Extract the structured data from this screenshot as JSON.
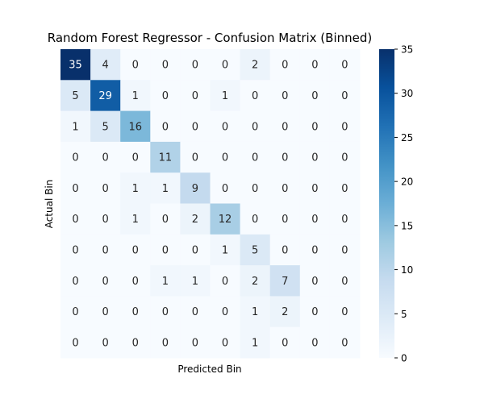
{
  "chart_data": {
    "type": "heatmap",
    "title": "Random Forest Regressor - Confusion Matrix (Binned)",
    "xlabel": "Predicted Bin",
    "ylabel": "Actual Bin",
    "rows": [
      [
        35,
        4,
        0,
        0,
        0,
        0,
        2,
        0,
        0,
        0
      ],
      [
        5,
        29,
        1,
        0,
        0,
        1,
        0,
        0,
        0,
        0
      ],
      [
        1,
        5,
        16,
        0,
        0,
        0,
        0,
        0,
        0,
        0
      ],
      [
        0,
        0,
        0,
        11,
        0,
        0,
        0,
        0,
        0,
        0
      ],
      [
        0,
        0,
        1,
        1,
        9,
        0,
        0,
        0,
        0,
        0
      ],
      [
        0,
        0,
        1,
        0,
        2,
        12,
        0,
        0,
        0,
        0
      ],
      [
        0,
        0,
        0,
        0,
        0,
        1,
        5,
        0,
        0,
        0
      ],
      [
        0,
        0,
        0,
        1,
        1,
        0,
        2,
        7,
        0,
        0
      ],
      [
        0,
        0,
        0,
        0,
        0,
        0,
        1,
        2,
        0,
        0
      ],
      [
        0,
        0,
        0,
        0,
        0,
        0,
        1,
        0,
        0,
        0
      ]
    ],
    "color_scale": {
      "name": "Blues",
      "min": 0,
      "max": 35,
      "low_color": "#f7fbff",
      "high_color": "#08306b"
    },
    "colorbar_ticks": [
      0,
      5,
      10,
      15,
      20,
      25,
      30,
      35
    ],
    "annotate_cells": true,
    "grid": false
  }
}
